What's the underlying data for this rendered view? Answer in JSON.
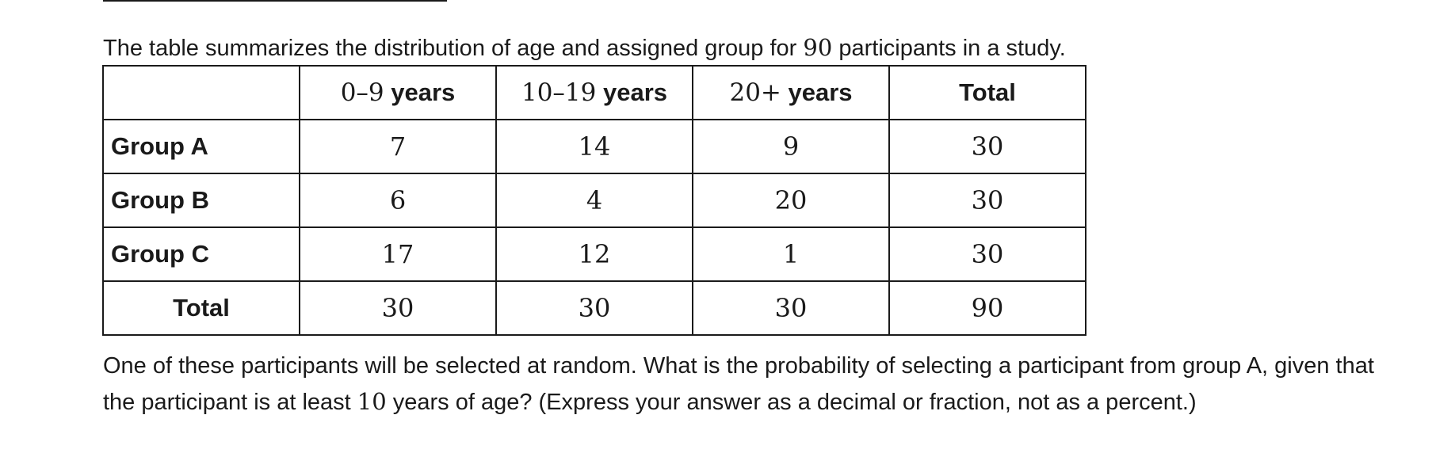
{
  "intro": {
    "before": "The table summarizes the distribution of age and assigned group for ",
    "count": "90",
    "after": " participants in a study."
  },
  "table": {
    "columns": [
      {
        "num": "",
        "unit": ""
      },
      {
        "num": "0–9",
        "unit": " years"
      },
      {
        "num": "10–19",
        "unit": " years"
      },
      {
        "num": "20+",
        "unit": " years"
      },
      {
        "num": "",
        "unit": "Total"
      }
    ],
    "rows": [
      {
        "label": "Group A",
        "values": [
          "7",
          "14",
          "9",
          "30"
        ]
      },
      {
        "label": "Group B",
        "values": [
          "6",
          "4",
          "20",
          "30"
        ]
      },
      {
        "label": "Group C",
        "values": [
          "17",
          "12",
          "1",
          "30"
        ]
      },
      {
        "label": "Total",
        "values": [
          "30",
          "30",
          "30",
          "90"
        ]
      }
    ]
  },
  "question": {
    "before": "One of these participants will be selected at random. What is the probability of selecting a participant from group A, given that the participant is at least ",
    "age": "10",
    "after": " years of age? (Express your answer as a decimal or fraction, not as a percent.)"
  }
}
